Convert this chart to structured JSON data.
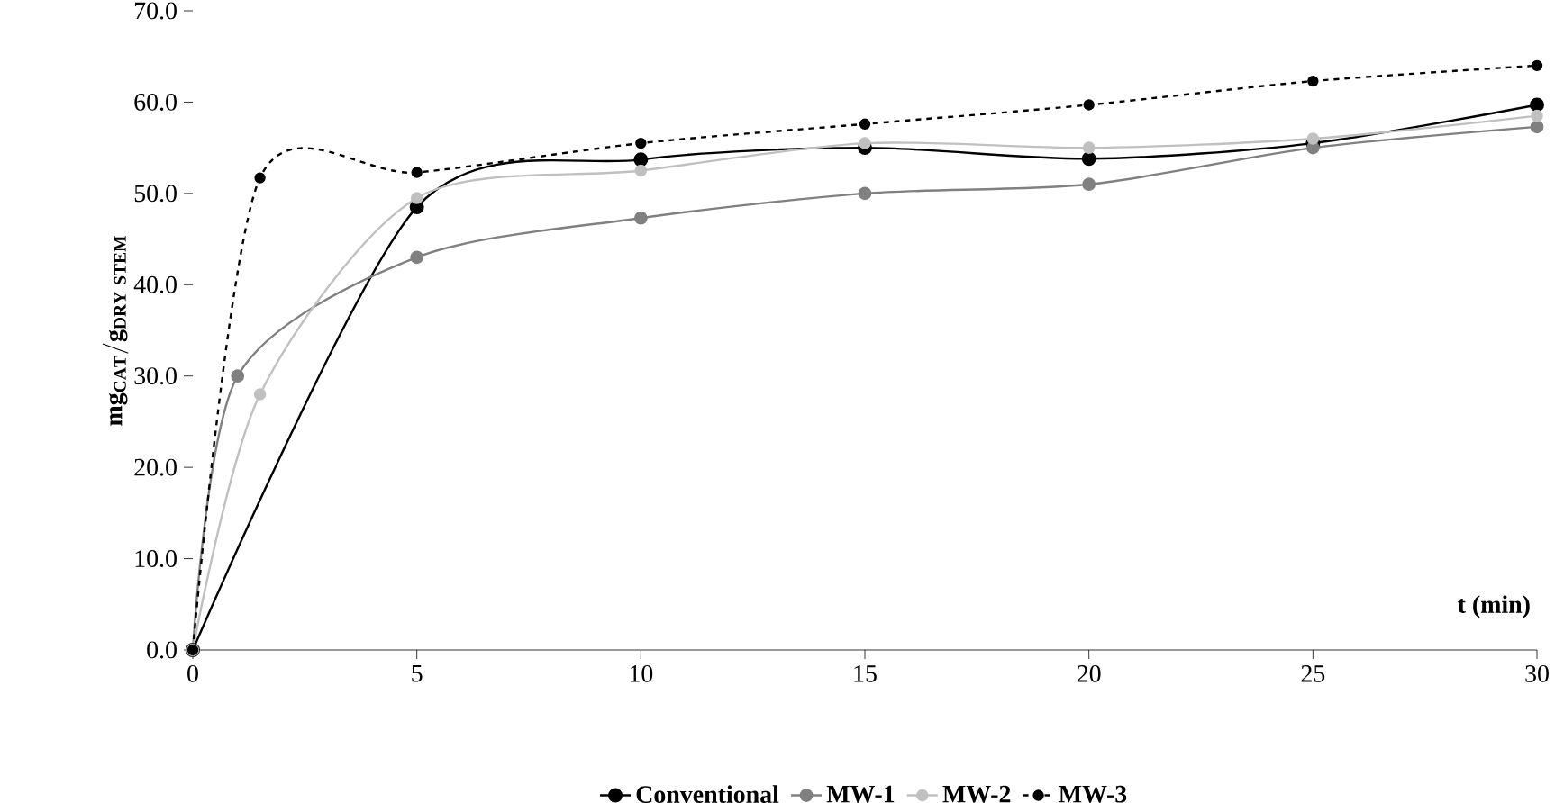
{
  "chart_data": {
    "type": "line",
    "xlabel": "t (min)",
    "ylabel": "\\mathbf{mg_{CAT}/g_{DRY\\ STEM}}",
    "xlim": [
      0,
      30
    ],
    "xticks": [
      0,
      5,
      10,
      15,
      20,
      25,
      30
    ],
    "ylim": [
      0,
      70
    ],
    "yticks": [
      {
        "value": 0,
        "label": "0.0"
      },
      {
        "value": 10,
        "label": "10.0"
      },
      {
        "value": 20,
        "label": "20.0"
      },
      {
        "value": 30,
        "label": "30.0"
      },
      {
        "value": 40,
        "label": "40.0"
      },
      {
        "value": 50,
        "label": "50.0"
      },
      {
        "value": 60,
        "label": "60.0"
      },
      {
        "value": 70,
        "label": "70.0"
      }
    ],
    "grid": false,
    "legend": "bottom",
    "marker": "circle",
    "series": [
      {
        "name": "Conventional",
        "color": "#000000",
        "line_style": "solid",
        "x": [
          0,
          5,
          10,
          15,
          20,
          25,
          30
        ],
        "values": [
          0,
          48.5,
          53.7,
          55,
          53.8,
          55.5,
          59.7
        ]
      },
      {
        "name": "MW-1",
        "color": "#808080",
        "line_style": "solid",
        "x": [
          0,
          1,
          5,
          10,
          15,
          20,
          25,
          30
        ],
        "values": [
          0,
          30,
          43,
          47.3,
          50,
          51,
          55,
          57.3
        ]
      },
      {
        "name": "MW-2",
        "color": "#c0c0c0",
        "line_style": "solid",
        "x": [
          0,
          1.5,
          5,
          10,
          15,
          20,
          25,
          30
        ],
        "values": [
          0,
          28,
          49.5,
          52.5,
          55.5,
          55,
          56,
          58.5
        ]
      },
      {
        "name": "MW-3",
        "color": "#000000",
        "line_style": "dashed",
        "x": [
          0,
          1.5,
          5,
          10,
          15,
          20,
          25,
          30
        ],
        "values": [
          0,
          51.7,
          52.3,
          55.5,
          57.6,
          59.7,
          62.3,
          64
        ]
      }
    ]
  }
}
